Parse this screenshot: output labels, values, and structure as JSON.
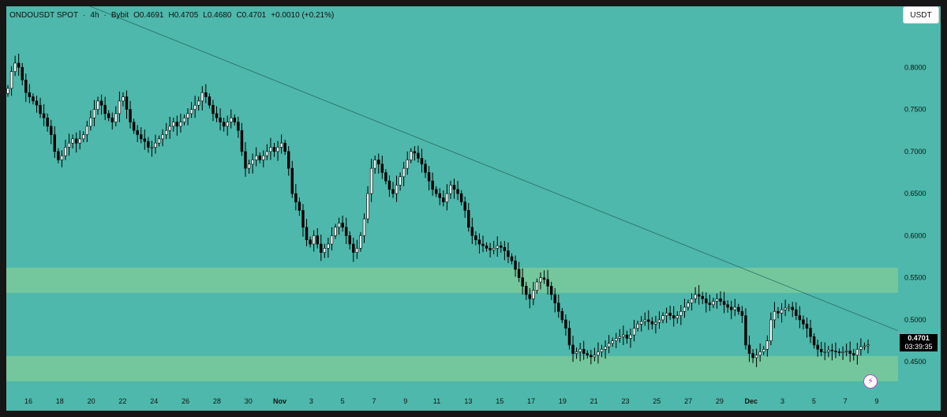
{
  "header": {
    "symbol": "ONDOUSDT SPOT",
    "sep1": "·",
    "interval": "4h",
    "sep2": "·",
    "exchange": "Bybit",
    "open": "O0.4691",
    "high": "H0.4705",
    "low": "L0.4680",
    "close": "C0.4701",
    "change": "+0.0010 (+0.21%)"
  },
  "currency_button": "USDT",
  "last_price": {
    "price": "0.4701",
    "countdown": "03:39:35"
  },
  "colors": {
    "background": "#4db8ab",
    "zone": "#74c79c",
    "candle_up": "#ffffff",
    "candle_down": "#000000",
    "trendline": "#2a6b66"
  },
  "icons": {
    "lightning": "lightning-icon"
  },
  "chart_data": {
    "type": "candlestick",
    "title": "ONDOUSDT SPOT · 4h · Bybit",
    "xlabel": "",
    "ylabel": "",
    "ylim": [
      0.4155,
      0.8725
    ],
    "yticks": [
      "0.8000",
      "0.7500",
      "0.7000",
      "0.6500",
      "0.6000",
      "0.5500",
      "0.5000",
      "0.4500"
    ],
    "yticks_values": [
      0.8,
      0.75,
      0.7,
      0.65,
      0.6,
      0.55,
      0.5,
      0.45
    ],
    "xticks": [
      "16",
      "18",
      "20",
      "22",
      "24",
      "26",
      "28",
      "30",
      "Nov",
      "3",
      "5",
      "7",
      "9",
      "11",
      "13",
      "15",
      "17",
      "19",
      "21",
      "23",
      "25",
      "27",
      "29",
      "Dec",
      "3",
      "5",
      "7",
      "9"
    ],
    "xticks_bold": [
      "Nov",
      "Dec"
    ],
    "grid": false,
    "zones": [
      {
        "low": 0.532,
        "high": 0.562
      },
      {
        "low": 0.427,
        "high": 0.457
      }
    ],
    "trendline": {
      "from": {
        "x": "16",
        "y": 0.905
      },
      "to": {
        "x": "9",
        "y": 0.487
      }
    },
    "closes": [
      0.775,
      0.795,
      0.805,
      0.8,
      0.785,
      0.77,
      0.765,
      0.76,
      0.755,
      0.745,
      0.74,
      0.73,
      0.72,
      0.7,
      0.69,
      0.695,
      0.705,
      0.71,
      0.715,
      0.71,
      0.715,
      0.72,
      0.73,
      0.74,
      0.75,
      0.76,
      0.755,
      0.745,
      0.74,
      0.735,
      0.745,
      0.76,
      0.765,
      0.75,
      0.735,
      0.725,
      0.72,
      0.715,
      0.712,
      0.705,
      0.705,
      0.71,
      0.715,
      0.72,
      0.725,
      0.73,
      0.735,
      0.73,
      0.735,
      0.74,
      0.745,
      0.75,
      0.755,
      0.76,
      0.77,
      0.765,
      0.755,
      0.745,
      0.74,
      0.735,
      0.73,
      0.735,
      0.74,
      0.735,
      0.725,
      0.7,
      0.68,
      0.685,
      0.69,
      0.695,
      0.69,
      0.695,
      0.7,
      0.705,
      0.7,
      0.705,
      0.71,
      0.7,
      0.68,
      0.65,
      0.64,
      0.63,
      0.61,
      0.595,
      0.59,
      0.6,
      0.59,
      0.58,
      0.585,
      0.59,
      0.6,
      0.61,
      0.615,
      0.61,
      0.6,
      0.59,
      0.58,
      0.585,
      0.6,
      0.62,
      0.65,
      0.68,
      0.69,
      0.685,
      0.675,
      0.665,
      0.655,
      0.65,
      0.66,
      0.67,
      0.68,
      0.69,
      0.7,
      0.698,
      0.692,
      0.685,
      0.675,
      0.665,
      0.655,
      0.65,
      0.645,
      0.64,
      0.65,
      0.66,
      0.655,
      0.65,
      0.64,
      0.63,
      0.61,
      0.6,
      0.595,
      0.59,
      0.588,
      0.585,
      0.583,
      0.585,
      0.588,
      0.586,
      0.582,
      0.575,
      0.57,
      0.56,
      0.55,
      0.54,
      0.53,
      0.525,
      0.535,
      0.545,
      0.55,
      0.548,
      0.54,
      0.53,
      0.52,
      0.51,
      0.5,
      0.49,
      0.47,
      0.46,
      0.462,
      0.465,
      0.46,
      0.458,
      0.456,
      0.458,
      0.462,
      0.465,
      0.468,
      0.472,
      0.475,
      0.478,
      0.48,
      0.482,
      0.478,
      0.482,
      0.49,
      0.495,
      0.498,
      0.5,
      0.498,
      0.495,
      0.497,
      0.5,
      0.505,
      0.508,
      0.505,
      0.502,
      0.505,
      0.51,
      0.515,
      0.52,
      0.525,
      0.53,
      0.528,
      0.525,
      0.52,
      0.518,
      0.522,
      0.525,
      0.522,
      0.518,
      0.515,
      0.512,
      0.515,
      0.51,
      0.505,
      0.47,
      0.46,
      0.455,
      0.458,
      0.462,
      0.465,
      0.475,
      0.5,
      0.51,
      0.508,
      0.512,
      0.514,
      0.515,
      0.512,
      0.505,
      0.5,
      0.495,
      0.49,
      0.48,
      0.47,
      0.465,
      0.462,
      0.462,
      0.464,
      0.463,
      0.462,
      0.461,
      0.462,
      0.463,
      0.46,
      0.458,
      0.465,
      0.468,
      0.469,
      0.4701
    ]
  }
}
